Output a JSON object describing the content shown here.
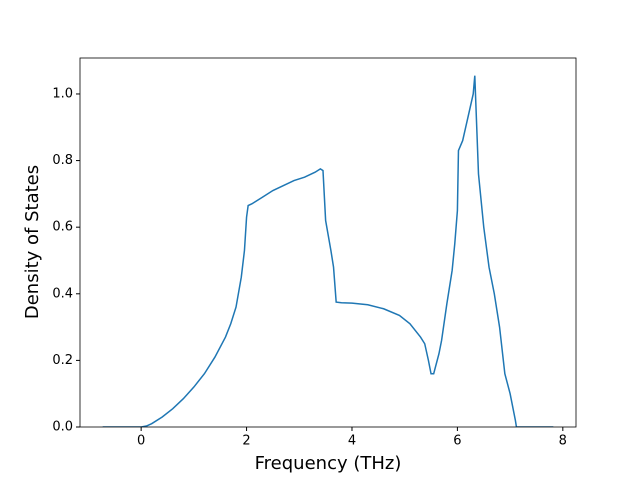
{
  "chart_data": {
    "type": "line",
    "xlabel": "Frequency (THz)",
    "ylabel": "Density of States",
    "xlim": [
      -1.16,
      8.25
    ],
    "ylim": [
      0,
      1.108
    ],
    "xticks": [
      0,
      2,
      4,
      6,
      8
    ],
    "yticks": [
      {
        "value": 0,
        "label": "0.0"
      },
      0.2,
      0.4,
      0.6,
      0.8,
      {
        "value": 1,
        "label": "1.0"
      }
    ],
    "series": [
      {
        "color": "#1f77b4",
        "x": [
          -0.73,
          0,
          0.1,
          0.2,
          0.4,
          0.6,
          0.8,
          1.0,
          1.2,
          1.4,
          1.6,
          1.7,
          1.8,
          1.9,
          1.96,
          2.0,
          2.03,
          2.1,
          2.3,
          2.5,
          2.7,
          2.9,
          3.1,
          3.3,
          3.4,
          3.45,
          3.5,
          3.6,
          3.65,
          3.7,
          3.8,
          4.0,
          4.3,
          4.6,
          4.9,
          5.1,
          5.3,
          5.38,
          5.45,
          5.5,
          5.55,
          5.65,
          5.7,
          5.8,
          5.9,
          5.95,
          6.0,
          6.02,
          6.1,
          6.2,
          6.3,
          6.33,
          6.4,
          6.5,
          6.6,
          6.7,
          6.8,
          6.9,
          7.0,
          7.1,
          7.12,
          7.82
        ],
        "values": [
          0,
          0,
          0.003,
          0.01,
          0.03,
          0.055,
          0.085,
          0.12,
          0.16,
          0.21,
          0.27,
          0.31,
          0.36,
          0.45,
          0.53,
          0.63,
          0.665,
          0.67,
          0.69,
          0.71,
          0.725,
          0.74,
          0.75,
          0.765,
          0.775,
          0.77,
          0.62,
          0.53,
          0.48,
          0.375,
          0.373,
          0.372,
          0.367,
          0.355,
          0.335,
          0.31,
          0.27,
          0.25,
          0.2,
          0.16,
          0.16,
          0.22,
          0.26,
          0.37,
          0.47,
          0.55,
          0.65,
          0.83,
          0.86,
          0.93,
          1.0,
          1.055,
          0.76,
          0.6,
          0.48,
          0.4,
          0.3,
          0.16,
          0.1,
          0.02,
          0,
          0
        ]
      }
    ]
  }
}
